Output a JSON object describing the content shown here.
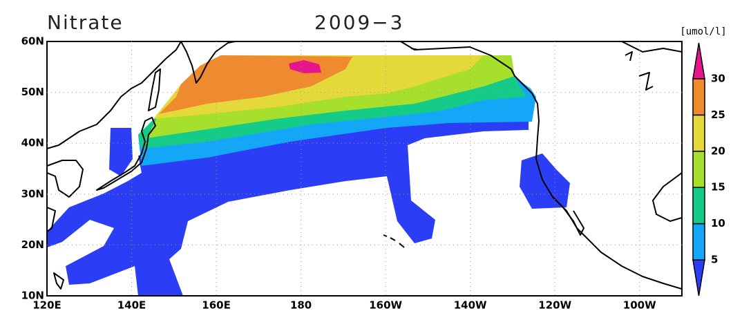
{
  "title": "Nitrate",
  "date": "2009−3",
  "units": "[umol/l]",
  "map": {
    "x_labels": [
      "120E",
      "140E",
      "160E",
      "180",
      "160W",
      "140W",
      "120W",
      "100W"
    ],
    "y_labels": [
      "10N",
      "20N",
      "30N",
      "40N",
      "50N",
      "60N"
    ]
  },
  "colorbar": {
    "levels": [
      5,
      10,
      15,
      20,
      25,
      30
    ],
    "colors": [
      "#2b3ef5",
      "#14a6f7",
      "#14cc88",
      "#a6e02c",
      "#e4d83a",
      "#ef8a2e",
      "#e5168c"
    ]
  }
}
